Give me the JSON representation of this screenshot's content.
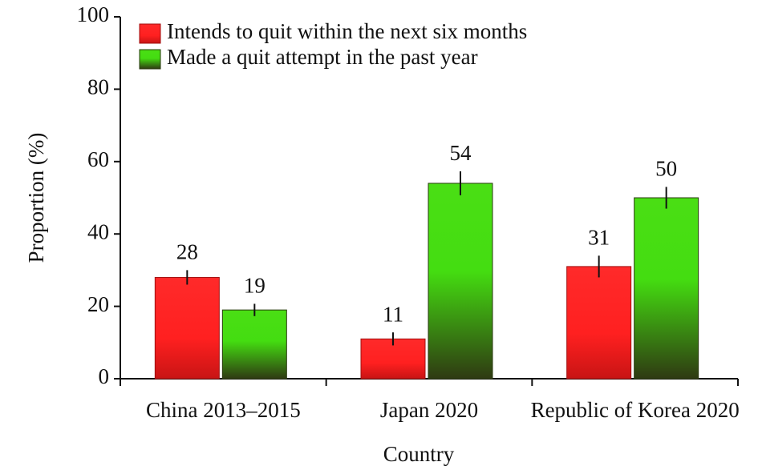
{
  "chart_data": {
    "type": "bar",
    "categories": [
      "China 2013–2015",
      "Japan 2020",
      "Republic of Korea 2020"
    ],
    "series": [
      {
        "name": "Intends to quit within the next six months",
        "color": "#ff2020",
        "values": [
          28,
          11,
          31
        ],
        "errors": [
          2,
          1.8,
          3
        ]
      },
      {
        "name": "Made a quit attempt in the past year",
        "color": "#44dd11",
        "values": [
          19,
          54,
          50
        ],
        "errors": [
          1.7,
          3.3,
          3
        ]
      }
    ],
    "y_label": "Proportion (%)",
    "x_label": "Country",
    "ylim": [
      0,
      100
    ],
    "yticks": [
      0,
      20,
      40,
      60,
      80,
      100
    ],
    "legend": "upper left"
  }
}
